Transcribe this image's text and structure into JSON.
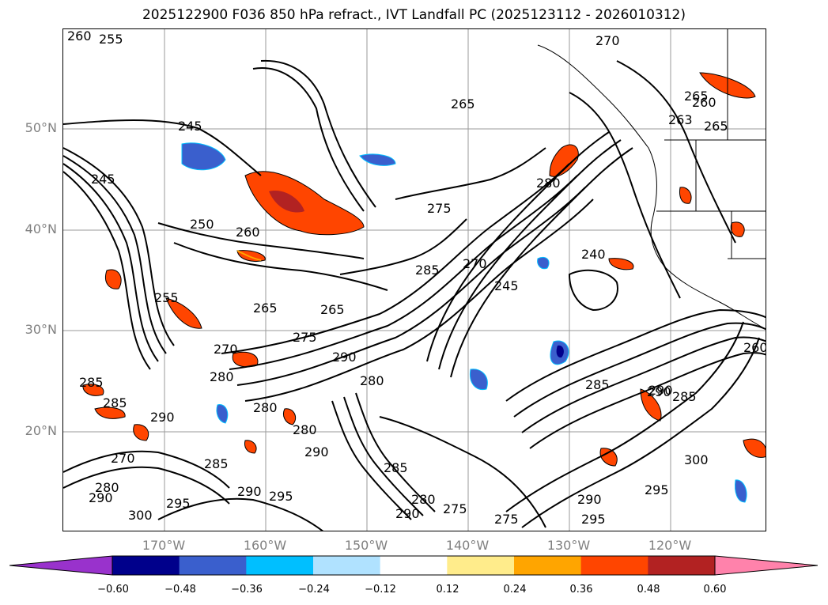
{
  "title": "2025122900 F036 850 hPa refract., IVT Landfall PC (2025123112 - 2026010312)",
  "lat_labels": [
    "50°N",
    "40°N",
    "30°N",
    "20°N"
  ],
  "lon_labels": [
    "170°W",
    "160°W",
    "150°W",
    "140°W",
    "130°W",
    "120°W"
  ],
  "colorbar": {
    "colors": [
      "#9932cc",
      "#00008b",
      "#3a5fcd",
      "#00bfff",
      "#b0e2ff",
      "#ffffff",
      "#ffec8b",
      "#ffa500",
      "#ff4500",
      "#b22222",
      "#ff82ab"
    ],
    "tick_labels": [
      "−0.60",
      "−0.48",
      "−0.36",
      "−0.24",
      "−0.12",
      "0.12",
      "0.24",
      "0.36",
      "0.48",
      "0.60"
    ]
  },
  "contour_labels": [
    "260",
    "255",
    "265",
    "270",
    "245",
    "265",
    "245",
    "250",
    "260",
    "255",
    "265",
    "275",
    "280",
    "285",
    "270",
    "245",
    "240",
    "275",
    "280",
    "270",
    "290",
    "265",
    "280",
    "285",
    "280",
    "290",
    "280",
    "290",
    "285",
    "290",
    "285",
    "270",
    "280",
    "290",
    "285",
    "295",
    "300",
    "295",
    "290",
    "285",
    "280",
    "275",
    "275",
    "290",
    "295",
    "290",
    "260",
    "263",
    "265",
    "260",
    "290",
    "285",
    "300",
    "295"
  ]
}
